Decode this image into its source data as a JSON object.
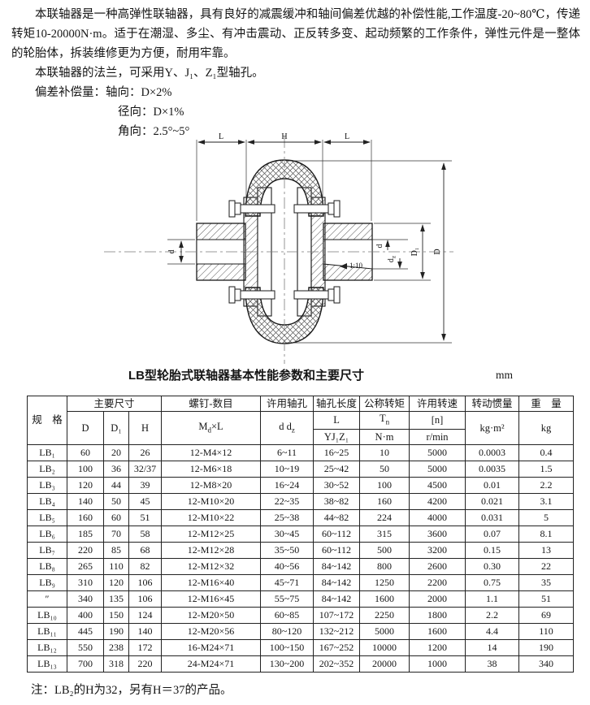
{
  "intro": {
    "para1": "本联轴器是一种高弹性联轴器，具有良好的减震缓冲和轴间偏差优越的补偿性能,工作温度-20~80℃，传递转矩10-20000N·m。适于在潮湿、多尘、有冲击震动、正反转多变、起动频繁的工作条件，弹性元件是一整体的轮胎体，拆装维修更为方便，耐用牢靠。",
    "para2": "本联轴器的法兰，可采用Y、J₁、Z₁型轴孔。",
    "comp_label": "偏差补偿量：",
    "comp_axial": "轴向：D×2%",
    "comp_radial": "径向：D×1%",
    "comp_angular": "角向：2.5°~5°"
  },
  "diagram": {
    "dim_L_left": "L",
    "dim_H": "H",
    "dim_L_right": "L",
    "dim_d_left": "d",
    "dim_d_right": "d",
    "dim_dz_base": "d",
    "dim_dz_sub": "z",
    "dim_D1": "D₁",
    "dim_D": "D",
    "taper": "1:10"
  },
  "table": {
    "title": "LB型轮胎式联轴器基本性能参数和主要尺寸",
    "unit": "mm",
    "header": {
      "spec": "规　格",
      "main_dims": "主要尺寸",
      "col_D": "D",
      "col_D1": "D₁",
      "col_H": "H",
      "screws": "螺钉-数目",
      "screws_m": "M",
      "screws_m_sub": "d",
      "screws_m_rest": "×L",
      "bore": "许用轴孔",
      "bore_d": "d d",
      "bore_dz_sub": "z",
      "bore_len": "轴孔长度",
      "bore_len_l": "L",
      "bore_len_types": "YJ₁Z₁",
      "torque": "公称转矩",
      "torque_sym_base": "T",
      "torque_sym_sub": "n",
      "torque_unit": "N·m",
      "speed": "许用转速",
      "speed_sym": "[n]",
      "speed_unit": "r/min",
      "inertia": "转动惯量",
      "inertia_unit": "kg·m²",
      "weight": "重　量",
      "weight_unit": "kg"
    },
    "rows": [
      [
        "LB₁",
        "60",
        "20",
        "26",
        "12-M4×12",
        "6~11",
        "16~25",
        "10",
        "5000",
        "0.0003",
        "0.4"
      ],
      [
        "LB₂",
        "100",
        "36",
        "32/37",
        "12-M6×18",
        "10~19",
        "25~42",
        "50",
        "5000",
        "0.0035",
        "1.5"
      ],
      [
        "LB₃",
        "120",
        "44",
        "39",
        "12-M8×20",
        "16~24",
        "30~52",
        "100",
        "4500",
        "0.01",
        "2.2"
      ],
      [
        "LB₄",
        "140",
        "50",
        "45",
        "12-M10×20",
        "22~35",
        "38~82",
        "160",
        "4200",
        "0.021",
        "3.1"
      ],
      [
        "LB₅",
        "160",
        "60",
        "51",
        "12-M10×22",
        "25~38",
        "44~82",
        "224",
        "4000",
        "0.031",
        "5"
      ],
      [
        "LB₆",
        "185",
        "70",
        "58",
        "12-M12×25",
        "30~45",
        "60~112",
        "315",
        "3600",
        "0.07",
        "8.1"
      ],
      [
        "LB₇",
        "220",
        "85",
        "68",
        "12-M12×28",
        "35~50",
        "60~112",
        "500",
        "3200",
        "0.15",
        "13"
      ],
      [
        "LB₈",
        "265",
        "110",
        "82",
        "12-M12×32",
        "40~56",
        "84~142",
        "800",
        "2600",
        "0.30",
        "22"
      ],
      [
        "LB₉",
        "310",
        "120",
        "106",
        "12-M16×40",
        "45~71",
        "84~142",
        "1250",
        "2200",
        "0.75",
        "35"
      ],
      [
        "″",
        "340",
        "135",
        "106",
        "12-M16×45",
        "55~75",
        "84~142",
        "1600",
        "2000",
        "1.1",
        "51"
      ],
      [
        "LB₁₀",
        "400",
        "150",
        "124",
        "12-M20×50",
        "60~85",
        "107~172",
        "2250",
        "1800",
        "2.2",
        "69"
      ],
      [
        "LB₁₁",
        "445",
        "190",
        "140",
        "12-M20×56",
        "80~120",
        "132~212",
        "5000",
        "1600",
        "4.4",
        "110"
      ],
      [
        "LB₁₂",
        "550",
        "238",
        "172",
        "16-M24×71",
        "100~150",
        "167~252",
        "10000",
        "1200",
        "14",
        "190"
      ],
      [
        "LB₁₃",
        "700",
        "318",
        "220",
        "24-M24×71",
        "130~200",
        "202~352",
        "20000",
        "1000",
        "38",
        "340"
      ]
    ]
  },
  "note": "注：LB₂的H为32，另有H＝37的产品。"
}
